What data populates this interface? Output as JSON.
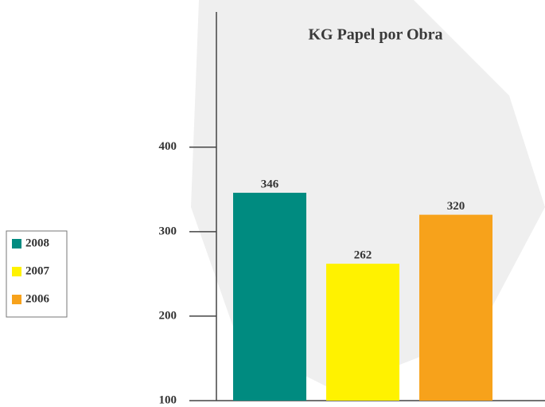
{
  "chart_data": {
    "type": "bar",
    "title": "KG Papel por Obra",
    "categories": [
      null
    ],
    "series": [
      {
        "name": "2008",
        "color": "#008b80",
        "values": [
          346
        ]
      },
      {
        "name": "2007",
        "color": "#fff200",
        "values": [
          262
        ]
      },
      {
        "name": "2006",
        "color": "#f7a21b",
        "values": [
          320
        ]
      }
    ],
    "ylim": [
      100,
      560
    ],
    "yticks": [
      100,
      200,
      300,
      400
    ],
    "data_labels": true,
    "legend": "left"
  }
}
